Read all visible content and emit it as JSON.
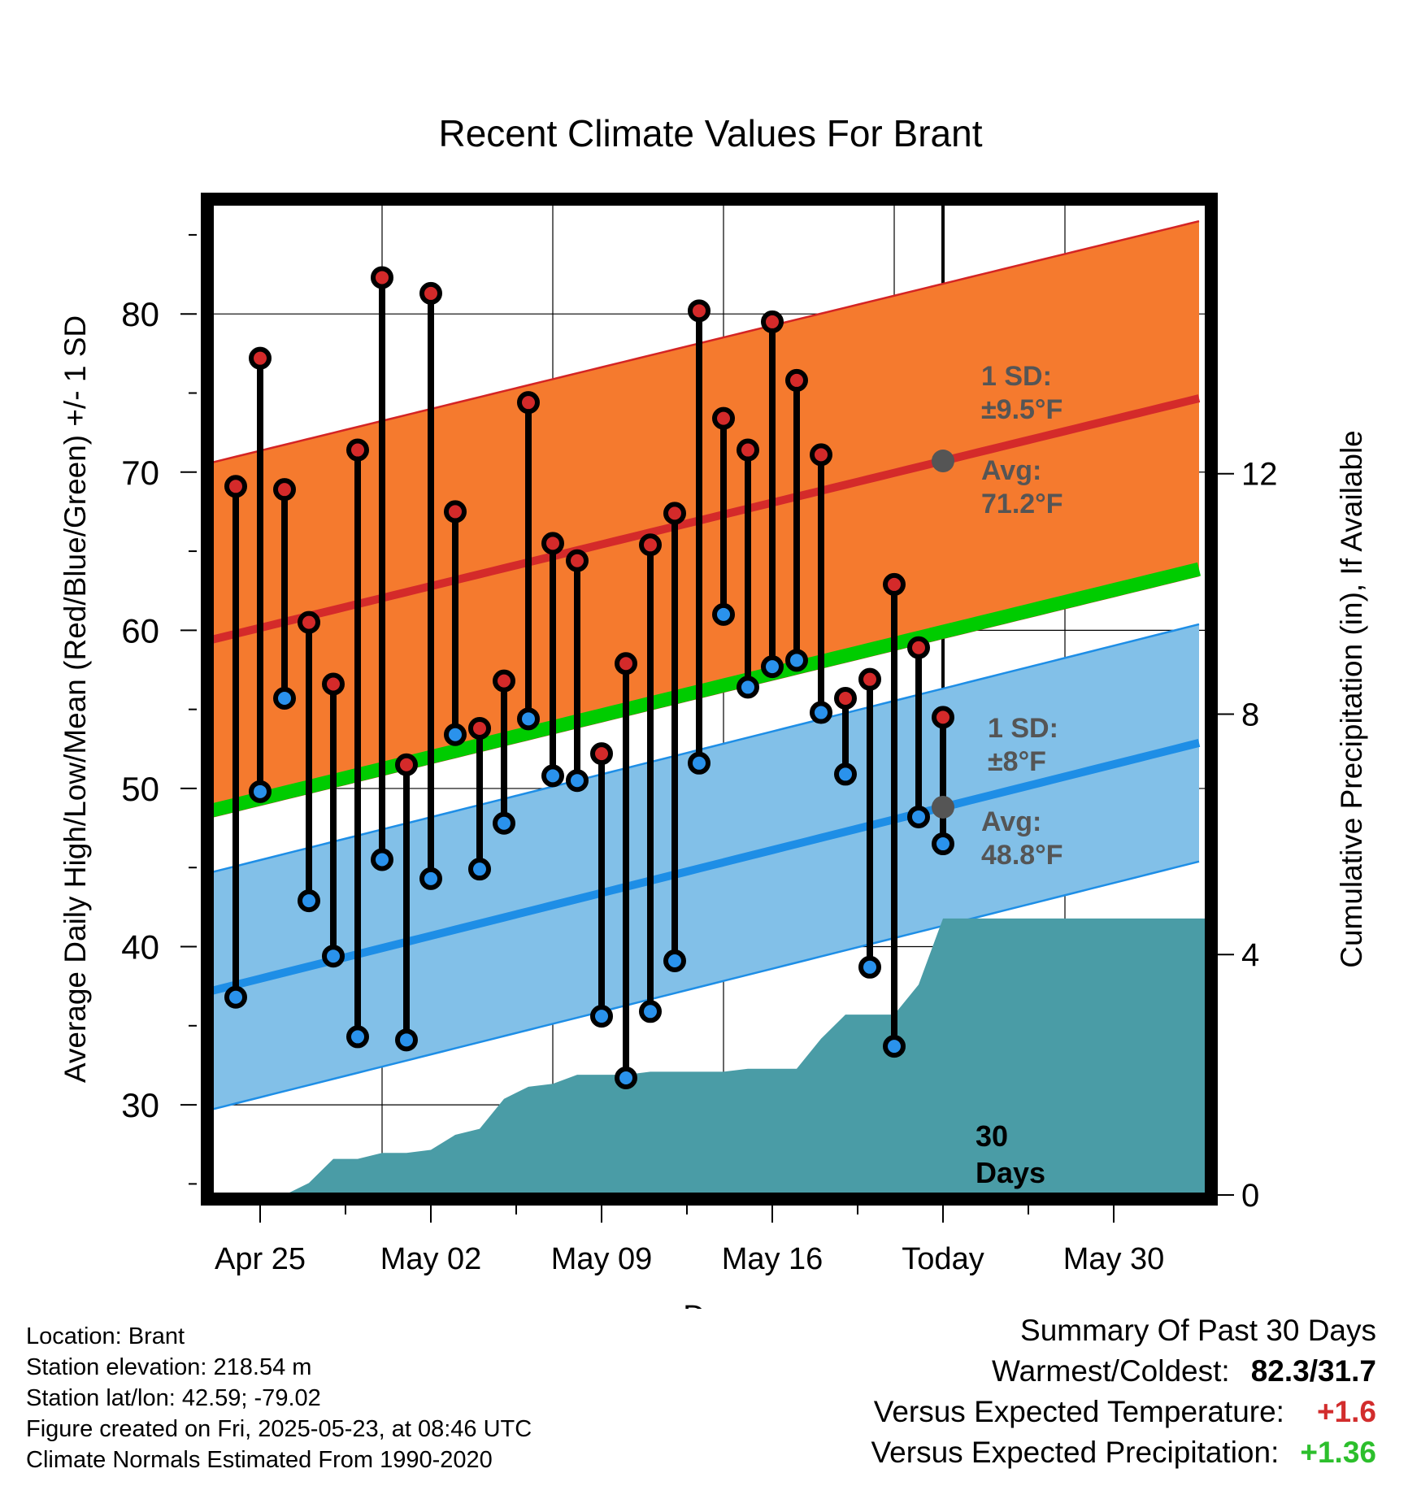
{
  "chart_data": {
    "type": "line",
    "title": "Recent Climate Values For Brant",
    "xlabel": "Day",
    "ylabel": "Average Daily High/Low/Mean (Red/Blue/Green) +/- 1 SD",
    "y2label": "Cumulative Precipitation (in), If Available",
    "x_ticks": [
      "Apr 25",
      "May 02",
      "May 09",
      "May 16",
      "Today",
      "May 30"
    ],
    "ylim": [
      24.3,
      87.0
    ],
    "y_ticks": [
      30,
      40,
      50,
      60,
      70,
      80
    ],
    "y2lim": [
      0,
      16.5
    ],
    "y2_ticks": [
      0,
      4,
      8,
      12
    ],
    "colors": {
      "high_band": "#f57a2e",
      "high_band_edge": "#d42424",
      "high_mean": "#d42a2a",
      "low_band": "#82c0e8",
      "low_band_edge": "#1e8ee6",
      "low_mean": "#1e8ee6",
      "mean_line": "#00cc00",
      "precip": "#4a9ca6",
      "high_marker": "#d42a2a",
      "low_marker": "#2a92ec",
      "annotation": "#555555"
    },
    "normals": {
      "day": [
        0,
        39
      ],
      "high_avg": [
        59.4,
        74.1
      ],
      "high_sd": 11.2,
      "low_avg": [
        37.2,
        52.3
      ],
      "low_sd": 7.5,
      "mean_avg": [
        48.6,
        63.3
      ]
    },
    "days": [
      1,
      2,
      3,
      4,
      5,
      6,
      7,
      8,
      9,
      10,
      11,
      12,
      13,
      14,
      15,
      16,
      17,
      18,
      19,
      20,
      21,
      22,
      23,
      24,
      25,
      26,
      27,
      28,
      29,
      30
    ],
    "highs": [
      69.1,
      77.2,
      68.9,
      60.5,
      56.6,
      71.4,
      82.3,
      51.5,
      81.3,
      67.5,
      53.8,
      56.8,
      74.4,
      65.5,
      64.4,
      52.2,
      57.9,
      65.4,
      67.4,
      80.2,
      73.4,
      71.4,
      79.5,
      75.8,
      71.1,
      55.7,
      56.9,
      62.9,
      58.9,
      54.5
    ],
    "lows": [
      36.8,
      49.8,
      55.7,
      42.9,
      39.4,
      34.3,
      45.5,
      34.1,
      44.3,
      53.4,
      44.9,
      47.8,
      54.4,
      50.8,
      50.5,
      35.6,
      31.7,
      35.9,
      39.1,
      51.6,
      61.0,
      56.4,
      57.7,
      58.1,
      54.8,
      50.9,
      38.7,
      33.7,
      48.2,
      46.5
    ],
    "precip_cumulative": [
      0.0,
      0.0,
      0.0,
      0.2,
      0.6,
      0.6,
      0.7,
      0.7,
      0.75,
      1.0,
      1.1,
      1.6,
      1.8,
      1.85,
      2.0,
      2.0,
      2.0,
      2.05,
      2.05,
      2.05,
      2.05,
      2.1,
      2.1,
      2.1,
      2.6,
      3.0,
      3.0,
      3.0,
      3.5,
      4.6
    ],
    "precip_today_label": [
      "30",
      "Days"
    ],
    "annotations": {
      "high_sd": [
        "1 SD:",
        "±9.5°F"
      ],
      "high_avg": [
        "Avg:",
        "71.2°F"
      ],
      "low_sd": [
        "1 SD:",
        "±8°F"
      ],
      "low_avg": [
        "Avg:",
        "48.8°F"
      ]
    }
  },
  "metadata": {
    "location": "Location: Brant",
    "elevation": "Station elevation: 218.54 m",
    "latlon": "Station lat/lon: 42.59; -79.02",
    "created": "Figure created on Fri, 2025-05-23, at 08:46 UTC",
    "normals_period": "Climate Normals Estimated From 1990-2020"
  },
  "summary": {
    "title": "Summary Of Past 30 Days",
    "warmest_label": "Warmest/Coldest:",
    "warmest_value": "82.3/31.7",
    "temp_label": "Versus Expected Temperature:",
    "temp_value": "+1.6",
    "precip_label": "Versus Expected Precipitation:",
    "precip_value": "+1.36"
  }
}
